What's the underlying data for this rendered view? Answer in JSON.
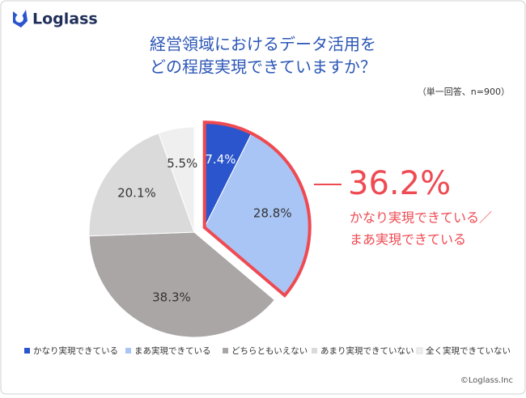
{
  "logo": "Loglass",
  "copyright": "©Loglass.Inc",
  "chart_data": {
    "type": "pie",
    "title": [
      "経営領域におけるデータ活用を",
      "どの程度実現できていますか？"
    ],
    "subtitle": "（単一回答、n=900）",
    "categories": [
      "かなり実現できている",
      "まあ実現できている",
      "どちらともいえない",
      "あまり実現できていない",
      "全く実現できていない"
    ],
    "values": [
      7.4,
      28.8,
      38.3,
      20.1,
      5.5
    ],
    "value_labels": [
      "7.4%",
      "28.8%",
      "38.3%",
      "20.1%",
      "5.5%"
    ],
    "colors": [
      "#2a55cc",
      "#a9c5f6",
      "#aba6a6",
      "#dadada",
      "#efefef"
    ],
    "label_colors": [
      "#ffffff",
      "#333333",
      "#333333",
      "#333333",
      "#333333"
    ],
    "callout": {
      "value": 36.2,
      "label": "36.2%",
      "text": [
        "かなり実現できている／",
        "まあ実現できている"
      ],
      "color": "#ef4a52"
    }
  }
}
